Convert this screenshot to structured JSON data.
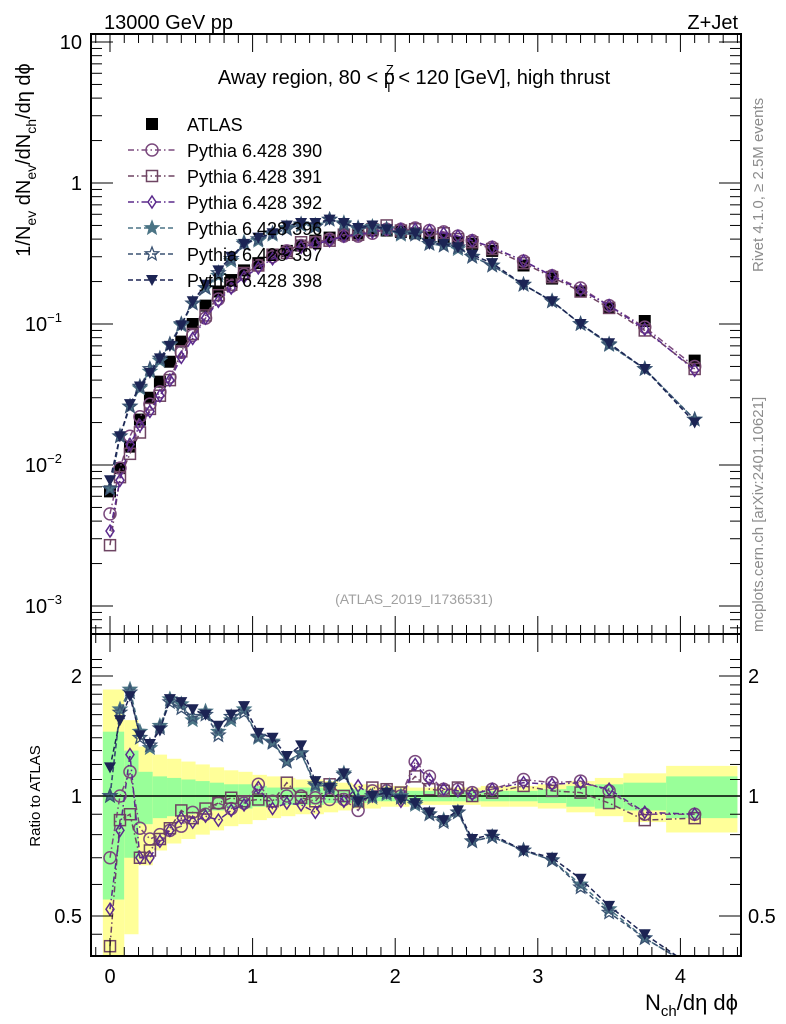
{
  "header": {
    "left_label": "13000 GeV pp",
    "right_label": "Z+Jet",
    "side_label_top": "Rivet 4.1.0, ≥ 2.5M events",
    "side_label_bottom": "mcplots.cern.ch [arXiv:2401.10621]",
    "analysis_tag": "(ATLAS_2019_I1736531)"
  },
  "chart_data": [
    {
      "type": "line",
      "panel": "main",
      "title": "Away region, 80 < p_T^Z < 120 [GeV], high thrust",
      "title_parts": {
        "pre": "Away region, 80 < p",
        "sup": "Z",
        "sub": "T",
        "post": " < 120 [GeV], high thrust"
      },
      "xlabel": "N_ch/dη dφ",
      "ylabel": "1/N_ev dN_ev/dN_ch/dη dφ",
      "yscale": "log",
      "xlim": [
        -0.14,
        4.42
      ],
      "ylim": [
        0.0006,
        12
      ],
      "ytick_labels": [
        {
          "value": 10,
          "label": "10"
        },
        {
          "value": 1,
          "label": "1"
        },
        {
          "value": 0.1,
          "label": "10",
          "exp": "−1"
        },
        {
          "value": 0.01,
          "label": "10",
          "exp": "−2"
        },
        {
          "value": 0.001,
          "label": "10",
          "exp": "−3"
        }
      ],
      "x": [
        0.0,
        0.07,
        0.14,
        0.21,
        0.28,
        0.35,
        0.42,
        0.5,
        0.58,
        0.67,
        0.76,
        0.85,
        0.94,
        1.04,
        1.14,
        1.24,
        1.34,
        1.44,
        1.54,
        1.64,
        1.74,
        1.84,
        1.94,
        2.04,
        2.14,
        2.24,
        2.34,
        2.44,
        2.54,
        2.68,
        2.9,
        3.1,
        3.3,
        3.5,
        3.75,
        4.1
      ],
      "series": [
        {
          "name": "ATLAS",
          "marker": "square-filled",
          "color": "#000000",
          "line": "none",
          "values": [
            0.0065,
            0.0095,
            0.0135,
            0.021,
            0.03,
            0.039,
            0.054,
            0.075,
            0.1,
            0.135,
            0.17,
            0.205,
            0.24,
            0.27,
            0.31,
            0.33,
            0.36,
            0.39,
            0.41,
            0.43,
            0.44,
            0.46,
            0.46,
            0.45,
            0.44,
            0.41,
            0.4,
            0.38,
            0.37,
            0.33,
            0.26,
            0.21,
            0.17,
            0.13,
            0.105,
            0.055
          ]
        },
        {
          "name": "Pythia 6.428 390",
          "marker": "circle-open",
          "color": "#7b4a7e",
          "line": "dashdot",
          "values": [
            0.0045,
            0.0095,
            0.016,
            0.022,
            0.027,
            0.033,
            0.042,
            0.063,
            0.083,
            0.11,
            0.15,
            0.185,
            0.225,
            0.26,
            0.3,
            0.33,
            0.36,
            0.38,
            0.4,
            0.42,
            0.42,
            0.44,
            0.47,
            0.47,
            0.48,
            0.46,
            0.45,
            0.42,
            0.39,
            0.35,
            0.28,
            0.22,
            0.18,
            0.135,
            0.095,
            0.05
          ]
        },
        {
          "name": "Pythia 6.428 391",
          "marker": "square-open",
          "color": "#6e4462",
          "line": "dashdot",
          "values": [
            0.0027,
            0.0082,
            0.012,
            0.017,
            0.025,
            0.031,
            0.04,
            0.064,
            0.085,
            0.115,
            0.16,
            0.19,
            0.23,
            0.26,
            0.31,
            0.32,
            0.38,
            0.38,
            0.39,
            0.43,
            0.43,
            0.47,
            0.5,
            0.46,
            0.47,
            0.43,
            0.44,
            0.4,
            0.38,
            0.34,
            0.27,
            0.215,
            0.17,
            0.13,
            0.09,
            0.048
          ]
        },
        {
          "name": "Pythia 6.428 392",
          "marker": "diamond-open",
          "color": "#5b2a8c",
          "line": "dashdot",
          "values": [
            0.0034,
            0.0078,
            0.014,
            0.019,
            0.024,
            0.031,
            0.04,
            0.058,
            0.079,
            0.11,
            0.145,
            0.18,
            0.215,
            0.25,
            0.29,
            0.32,
            0.35,
            0.37,
            0.39,
            0.42,
            0.43,
            0.45,
            0.47,
            0.47,
            0.47,
            0.46,
            0.44,
            0.42,
            0.39,
            0.35,
            0.28,
            0.22,
            0.175,
            0.135,
            0.092,
            0.047
          ]
        },
        {
          "name": "Pythia 6.428 396",
          "marker": "star-filled",
          "color": "#4b7485",
          "line": "dashed",
          "values": [
            0.0068,
            0.016,
            0.026,
            0.035,
            0.046,
            0.055,
            0.071,
            0.098,
            0.14,
            0.18,
            0.22,
            0.28,
            0.38,
            0.39,
            0.43,
            0.48,
            0.5,
            0.5,
            0.55,
            0.52,
            0.47,
            0.49,
            0.47,
            0.43,
            0.44,
            0.37,
            0.36,
            0.34,
            0.3,
            0.26,
            0.19,
            0.145,
            0.1,
            0.071,
            0.048,
            0.021
          ]
        },
        {
          "name": "Pythia 6.428 397",
          "marker": "star-open",
          "color": "#3a5272",
          "line": "dashed",
          "values": [
            0.0068,
            0.016,
            0.026,
            0.036,
            0.048,
            0.057,
            0.072,
            0.1,
            0.14,
            0.18,
            0.23,
            0.29,
            0.37,
            0.4,
            0.44,
            0.47,
            0.51,
            0.49,
            0.55,
            0.51,
            0.48,
            0.48,
            0.47,
            0.44,
            0.43,
            0.37,
            0.36,
            0.35,
            0.3,
            0.26,
            0.19,
            0.145,
            0.1,
            0.072,
            0.048,
            0.021
          ]
        },
        {
          "name": "Pythia 6.428 398",
          "marker": "triangle-down-filled",
          "color": "#1c2454",
          "line": "dashed",
          "values": [
            0.0078,
            0.016,
            0.027,
            0.036,
            0.045,
            0.057,
            0.07,
            0.098,
            0.145,
            0.19,
            0.24,
            0.3,
            0.37,
            0.41,
            0.44,
            0.5,
            0.52,
            0.52,
            0.55,
            0.52,
            0.48,
            0.5,
            0.47,
            0.44,
            0.44,
            0.37,
            0.37,
            0.35,
            0.31,
            0.27,
            0.19,
            0.145,
            0.1,
            0.073,
            0.048,
            0.02
          ]
        }
      ],
      "legend": {
        "placement": "top-left"
      }
    },
    {
      "type": "line",
      "panel": "ratio",
      "ylabel": "Ratio to ATLAS",
      "xlabel": "N_ch/dη dφ",
      "yscale": "log",
      "ylim": [
        0.42,
        2.3
      ],
      "ytick_labels": [
        {
          "value": 2,
          "label": "2"
        },
        {
          "value": 1,
          "label": "1"
        },
        {
          "value": 0.5,
          "label": "0.5"
        }
      ],
      "xtick_labels": [
        {
          "value": 0,
          "label": "0"
        },
        {
          "value": 1,
          "label": "1"
        },
        {
          "value": 2,
          "label": "2"
        },
        {
          "value": 3,
          "label": "3"
        },
        {
          "value": 4,
          "label": "4"
        }
      ],
      "bands": {
        "bin_edges": [
          -0.05,
          0.1,
          0.2,
          0.3,
          0.4,
          0.5,
          0.6,
          0.7,
          0.8,
          0.9,
          1.0,
          1.1,
          1.2,
          1.3,
          1.4,
          1.5,
          1.6,
          1.7,
          1.8,
          1.9,
          2.0,
          2.1,
          2.2,
          2.3,
          2.4,
          2.5,
          2.6,
          2.8,
          3.0,
          3.2,
          3.4,
          3.6,
          3.9,
          4.4
        ],
        "yellow_half": [
          0.85,
          0.55,
          0.33,
          0.27,
          0.24,
          0.22,
          0.2,
          0.18,
          0.16,
          0.15,
          0.13,
          0.12,
          0.11,
          0.1,
          0.1,
          0.09,
          0.08,
          0.07,
          0.07,
          0.06,
          0.06,
          0.05,
          0.05,
          0.05,
          0.05,
          0.05,
          0.06,
          0.06,
          0.07,
          0.09,
          0.11,
          0.14,
          0.19
        ],
        "green_half": [
          0.45,
          0.3,
          0.15,
          0.12,
          0.11,
          0.1,
          0.09,
          0.08,
          0.07,
          0.07,
          0.06,
          0.05,
          0.05,
          0.05,
          0.05,
          0.04,
          0.04,
          0.04,
          0.03,
          0.03,
          0.03,
          0.03,
          0.03,
          0.03,
          0.03,
          0.03,
          0.03,
          0.03,
          0.04,
          0.06,
          0.07,
          0.08,
          0.12
        ],
        "yellow_color": "#ffff99",
        "green_color": "#99ff99"
      },
      "x": [
        0.0,
        0.07,
        0.14,
        0.21,
        0.28,
        0.35,
        0.42,
        0.5,
        0.58,
        0.67,
        0.76,
        0.85,
        0.94,
        1.04,
        1.14,
        1.24,
        1.34,
        1.44,
        1.54,
        1.64,
        1.74,
        1.84,
        1.94,
        2.04,
        2.14,
        2.24,
        2.34,
        2.44,
        2.54,
        2.68,
        2.9,
        3.1,
        3.3,
        3.5,
        3.75,
        4.1
      ],
      "series": [
        {
          "name": "Pythia 6.428 390",
          "marker": "circle-open",
          "color": "#7b4a7e",
          "line": "dashdot",
          "values": [
            0.7,
            1.0,
            1.15,
            0.83,
            0.78,
            0.8,
            0.82,
            0.84,
            0.91,
            0.9,
            0.96,
            0.93,
            0.96,
            1.07,
            0.97,
            1.0,
            1.0,
            0.99,
            0.98,
            0.98,
            0.92,
            1.03,
            1.03,
            1.0,
            1.22,
            1.12,
            1.04,
            1.04,
            1.02,
            1.04,
            1.1,
            1.08,
            1.09,
            1.03,
            0.9,
            0.9
          ]
        },
        {
          "name": "Pythia 6.428 391",
          "marker": "square-open",
          "color": "#6e4462",
          "line": "dashdot",
          "values": [
            0.42,
            0.87,
            0.9,
            0.7,
            0.73,
            0.78,
            0.83,
            0.92,
            0.88,
            0.93,
            0.96,
            0.99,
            0.97,
            0.98,
            0.97,
            1.08,
            0.99,
            0.97,
            1.07,
            1.0,
            0.97,
            1.05,
            1.04,
            1.02,
            1.12,
            1.04,
            1.03,
            1.05,
            1.0,
            1.02,
            1.06,
            1.03,
            1.02,
            0.96,
            0.87,
            0.88
          ]
        },
        {
          "name": "Pythia 6.428 392",
          "marker": "diamond-open",
          "color": "#5b2a8c",
          "line": "dashdot",
          "values": [
            0.52,
            0.82,
            1.27,
            0.7,
            0.7,
            0.77,
            0.82,
            0.88,
            0.86,
            0.89,
            0.87,
            0.92,
            0.95,
            1.05,
            0.93,
            0.96,
            0.95,
            0.91,
            1.05,
            0.97,
            1.06,
            1.0,
            1.02,
            0.97,
            1.2,
            1.1,
            1.04,
            1.03,
            1.01,
            1.04,
            1.08,
            1.07,
            1.08,
            1.04,
            0.91,
            0.9
          ]
        },
        {
          "name": "Pythia 6.428 396",
          "marker": "star-filled",
          "color": "#4b7485",
          "line": "dashed",
          "values": [
            1.0,
            1.65,
            1.85,
            1.45,
            1.32,
            1.5,
            1.75,
            1.7,
            1.55,
            1.63,
            1.45,
            1.55,
            1.65,
            1.4,
            1.37,
            1.22,
            1.28,
            1.06,
            1.06,
            1.14,
            0.98,
            0.99,
            1.01,
            1.0,
            0.95,
            0.9,
            0.87,
            0.91,
            0.77,
            0.79,
            0.73,
            0.69,
            0.6,
            0.52,
            0.44,
            0.37
          ]
        },
        {
          "name": "Pythia 6.428 397",
          "marker": "star-open",
          "color": "#3a5272",
          "line": "dashed",
          "values": [
            1.0,
            1.62,
            1.82,
            1.4,
            1.34,
            1.48,
            1.72,
            1.66,
            1.58,
            1.6,
            1.42,
            1.58,
            1.62,
            1.41,
            1.36,
            1.22,
            1.28,
            1.07,
            1.05,
            1.13,
            0.97,
            1.0,
            1.02,
            0.99,
            0.96,
            0.9,
            0.86,
            0.91,
            0.77,
            0.79,
            0.73,
            0.69,
            0.59,
            0.51,
            0.44,
            0.37
          ]
        },
        {
          "name": "Pythia 6.428 398",
          "marker": "triangle-down-filled",
          "color": "#1c2454",
          "line": "dashed",
          "values": [
            1.18,
            1.55,
            1.78,
            1.42,
            1.35,
            1.46,
            1.75,
            1.72,
            1.65,
            1.6,
            1.5,
            1.6,
            1.68,
            1.44,
            1.4,
            1.26,
            1.34,
            1.09,
            1.05,
            1.14,
            0.97,
            1.0,
            1.02,
            0.98,
            0.96,
            0.91,
            0.87,
            0.92,
            0.78,
            0.8,
            0.73,
            0.7,
            0.62,
            0.53,
            0.45,
            0.37
          ]
        }
      ]
    }
  ]
}
